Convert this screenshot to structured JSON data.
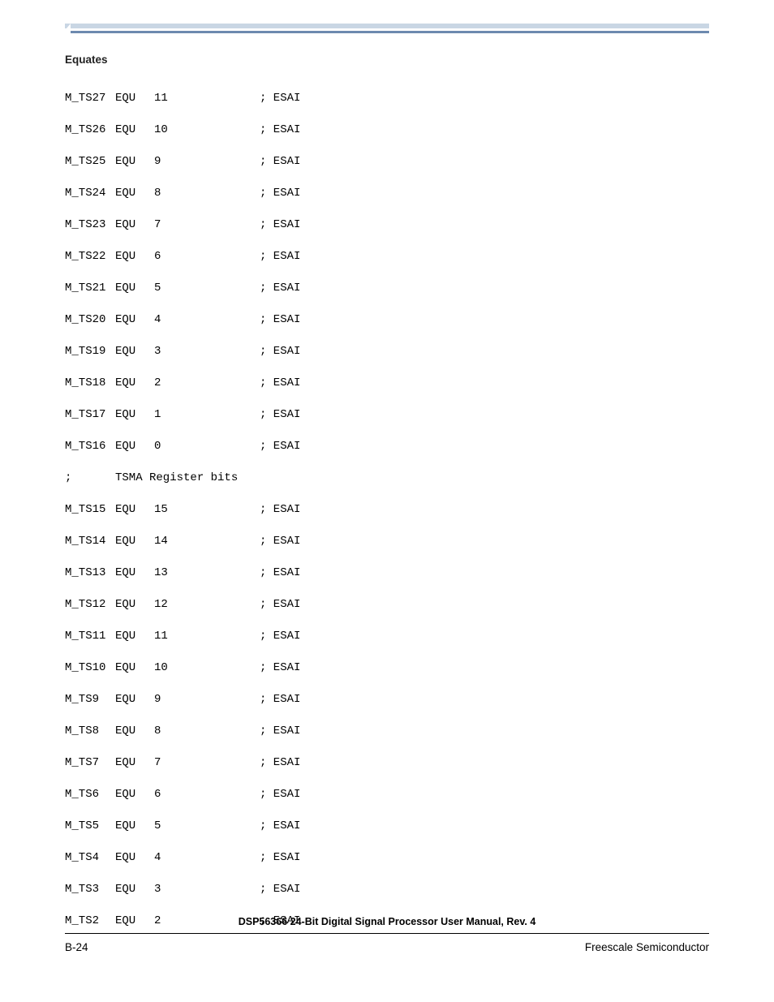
{
  "section_title": "Equates",
  "code": {
    "lines": [
      {
        "label": "M_TS27",
        "op": "EQU",
        "val": "11",
        "comment": "; ESAI"
      },
      {
        "label": "M_TS26",
        "op": "EQU",
        "val": "10",
        "comment": "; ESAI"
      },
      {
        "label": "M_TS25",
        "op": "EQU",
        "val": "9",
        "comment": "; ESAI"
      },
      {
        "label": "M_TS24",
        "op": "EQU",
        "val": "8",
        "comment": "; ESAI"
      },
      {
        "label": "M_TS23",
        "op": "EQU",
        "val": "7",
        "comment": "; ESAI"
      },
      {
        "label": "M_TS22",
        "op": "EQU",
        "val": "6",
        "comment": "; ESAI"
      },
      {
        "label": "M_TS21",
        "op": "EQU",
        "val": "5",
        "comment": "; ESAI"
      },
      {
        "label": "M_TS20",
        "op": "EQU",
        "val": "4",
        "comment": "; ESAI"
      },
      {
        "label": "M_TS19",
        "op": "EQU",
        "val": "3",
        "comment": "; ESAI"
      },
      {
        "label": "M_TS18",
        "op": "EQU",
        "val": "2",
        "comment": "; ESAI"
      },
      {
        "label": "M_TS17",
        "op": "EQU",
        "val": "1",
        "comment": "; ESAI"
      },
      {
        "label": "M_TS16",
        "op": "EQU",
        "val": "0",
        "comment": "; ESAI"
      },
      {
        "label": ";",
        "op": "TSMA Register bits",
        "val": "",
        "comment": ""
      },
      {
        "label": "M_TS15",
        "op": "EQU",
        "val": "15",
        "comment": "; ESAI"
      },
      {
        "label": "M_TS14",
        "op": "EQU",
        "val": "14",
        "comment": "; ESAI"
      },
      {
        "label": "M_TS13",
        "op": "EQU",
        "val": "13",
        "comment": "; ESAI"
      },
      {
        "label": "M_TS12",
        "op": "EQU",
        "val": "12",
        "comment": "; ESAI"
      },
      {
        "label": "M_TS11",
        "op": "EQU",
        "val": "11",
        "comment": "; ESAI"
      },
      {
        "label": "M_TS10",
        "op": "EQU",
        "val": "10",
        "comment": "; ESAI"
      },
      {
        "label": "M_TS9",
        "op": "EQU",
        "val": "9",
        "comment": "; ESAI"
      },
      {
        "label": "M_TS8",
        "op": "EQU",
        "val": "8",
        "comment": "; ESAI"
      },
      {
        "label": "M_TS7",
        "op": "EQU",
        "val": "7",
        "comment": "; ESAI"
      },
      {
        "label": "M_TS6",
        "op": "EQU",
        "val": "6",
        "comment": "; ESAI"
      },
      {
        "label": "M_TS5",
        "op": "EQU",
        "val": "5",
        "comment": "; ESAI"
      },
      {
        "label": "M_TS4",
        "op": "EQU",
        "val": "4",
        "comment": "; ESAI"
      },
      {
        "label": "M_TS3",
        "op": "EQU",
        "val": "3",
        "comment": "; ESAI"
      },
      {
        "label": "M_TS2",
        "op": "EQU",
        "val": "2",
        "comment": "; ESAI"
      }
    ]
  },
  "footer": {
    "title": "DSP56366 24-Bit Digital Signal Processor User Manual, Rev. 4",
    "left": "B-24",
    "right": "Freescale Semiconductor"
  },
  "colors": {
    "bar_light": "#c9d6e4",
    "bar_dark": "#6d8aaf",
    "text": "#000000",
    "background": "#ffffff"
  }
}
